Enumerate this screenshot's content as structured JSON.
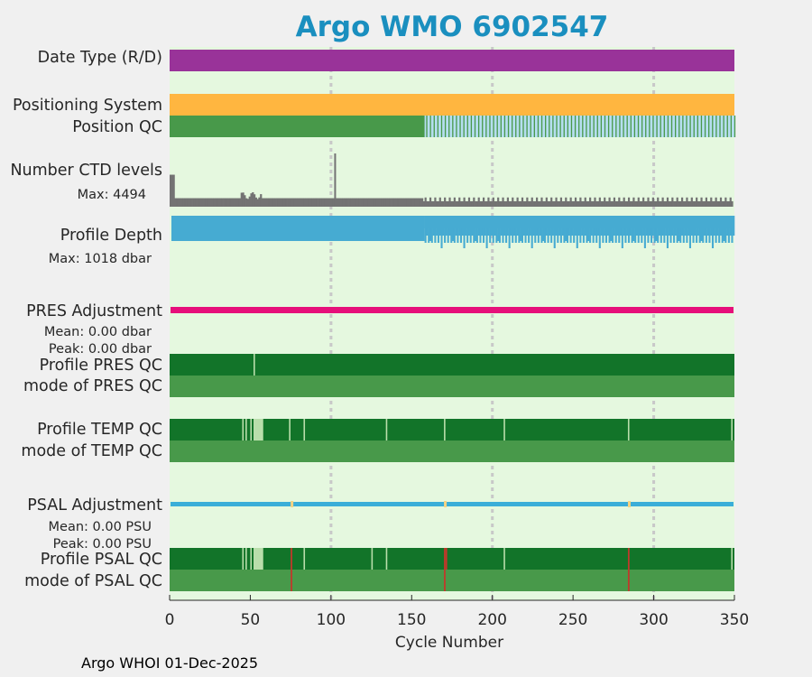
{
  "title": "Argo WMO 6902547",
  "footer": "Argo WHOI 01-Dec-2025",
  "colors": {
    "background": "#e5f8df",
    "date_type": "#993399",
    "positioning": "#ffb640",
    "qc_green": "#48994a",
    "qc_dark_green": "#127429",
    "qc_light_green": "#b9deab",
    "qc_light_blue": "#b6def0",
    "ctd_gray": "#737373",
    "depth_blue": "#46abd2",
    "pres_magenta": "#e6107a",
    "psal_blue": "#3aaed8",
    "psal_yellow": "#f5d483",
    "qc_red": "#c0392b",
    "grid": "#c8c8c8",
    "title": "#1a8fbf"
  },
  "chart_data": {
    "type": "table",
    "title": "Argo WMO 6902547",
    "xlabel": "Cycle Number",
    "xlim": [
      0,
      350
    ],
    "xticks": [
      0,
      50,
      100,
      150,
      200,
      250,
      300,
      350
    ],
    "grid_x": [
      100,
      200,
      300
    ],
    "rows": [
      {
        "key": "date_type",
        "label": "Date Type (R/D)",
        "type": "bar",
        "value": "R"
      },
      {
        "key": "positioning",
        "label": "Positioning System",
        "type": "bar"
      },
      {
        "key": "position_qc",
        "label": "Position QC",
        "type": "qc",
        "light_from_cycle": 158
      },
      {
        "key": "ctd_levels",
        "label": "Number CTD levels",
        "sub": "Max: 4494",
        "type": "ctd",
        "max": 4494,
        "base_level": 460,
        "early_level": 720,
        "spike_cycle": 102,
        "spike_level": 4494,
        "first_cycle_level": 2700
      },
      {
        "key": "profile_depth",
        "label": "Profile Depth",
        "sub": "Max: 1018 dbar",
        "type": "depth",
        "max_dbar": 1018
      },
      {
        "key": "pres_adjustment",
        "label": "PRES Adjustment",
        "sub": [
          "Mean: 0.00 dbar",
          "Peak: 0.00 dbar"
        ],
        "type": "line",
        "mean": 0.0,
        "peak": 0.0
      },
      {
        "key": "profile_pres_qc",
        "label": "Profile PRES QC",
        "type": "qc",
        "marks": [
          52
        ]
      },
      {
        "key": "mode_pres_qc",
        "label": "mode of PRES QC",
        "type": "qc"
      },
      {
        "key": "profile_temp_qc",
        "label": "Profile TEMP QC",
        "type": "qc",
        "marks": [
          45,
          47,
          50,
          74,
          83,
          134,
          170,
          207,
          284,
          348
        ],
        "light_range": [
          52,
          58
        ]
      },
      {
        "key": "mode_temp_qc",
        "label": "mode of TEMP QC",
        "type": "qc"
      },
      {
        "key": "psal_adjustment",
        "label": "PSAL Adjustment",
        "sub": [
          "Mean: 0.00 PSU",
          "Peak: 0.00 PSU"
        ],
        "type": "line",
        "mean": 0.0,
        "peak": 0.0,
        "flag_cycles": [
          75,
          170,
          284
        ]
      },
      {
        "key": "profile_psal_qc",
        "label": "Profile PSAL QC",
        "type": "qc",
        "marks": [
          45,
          47,
          50,
          83,
          125,
          134,
          207,
          348
        ],
        "light_range": [
          52,
          58
        ],
        "red_cycles": [
          75,
          170,
          171,
          284
        ]
      },
      {
        "key": "mode_psal_qc",
        "label": "mode of PSAL QC",
        "type": "qc",
        "red_cycles": [
          75,
          170,
          284
        ]
      }
    ]
  }
}
